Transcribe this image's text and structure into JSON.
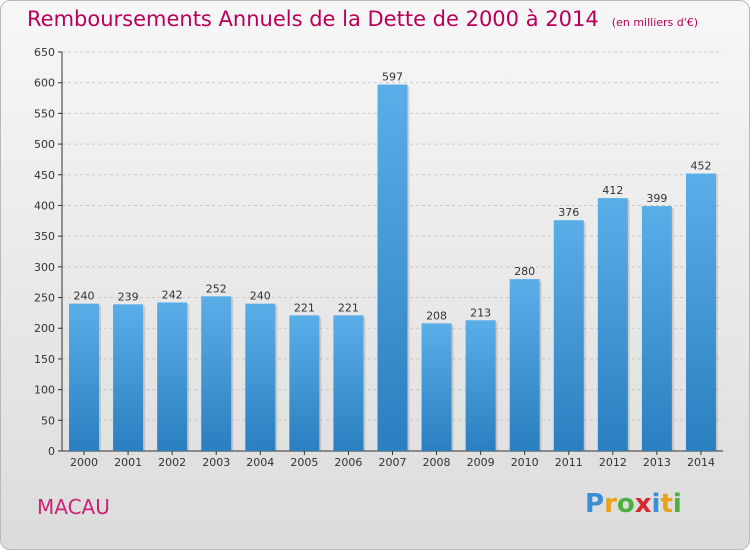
{
  "header": {
    "title": "Remboursements Annuels de la Dette de 2000 à 2014",
    "subtitle": "(en milliers d'€)"
  },
  "footer": {
    "city": "MACAU",
    "brand": "Proxiti"
  },
  "colors": {
    "title": "#b8005b",
    "bar_light": "#5aaee8",
    "bar_dark": "#2a7fc1",
    "grid": "#c8c8c8",
    "axis": "#333333"
  },
  "chart_data": {
    "type": "bar",
    "title": "Remboursements Annuels de la Dette de 2000 à 2014",
    "subtitle": "(en milliers d'€)",
    "xlabel": "",
    "ylabel": "",
    "categories": [
      "2000",
      "2001",
      "2002",
      "2003",
      "2004",
      "2005",
      "2006",
      "2007",
      "2008",
      "2009",
      "2010",
      "2011",
      "2012",
      "2013",
      "2014"
    ],
    "values": [
      240,
      239,
      242,
      252,
      240,
      221,
      221,
      597,
      208,
      213,
      280,
      376,
      412,
      399,
      452
    ],
    "ylim": [
      0,
      650
    ],
    "yticks": [
      0,
      50,
      100,
      150,
      200,
      250,
      300,
      350,
      400,
      450,
      500,
      550,
      600,
      650
    ],
    "grid": "horizontal dashed",
    "legend": "none"
  }
}
